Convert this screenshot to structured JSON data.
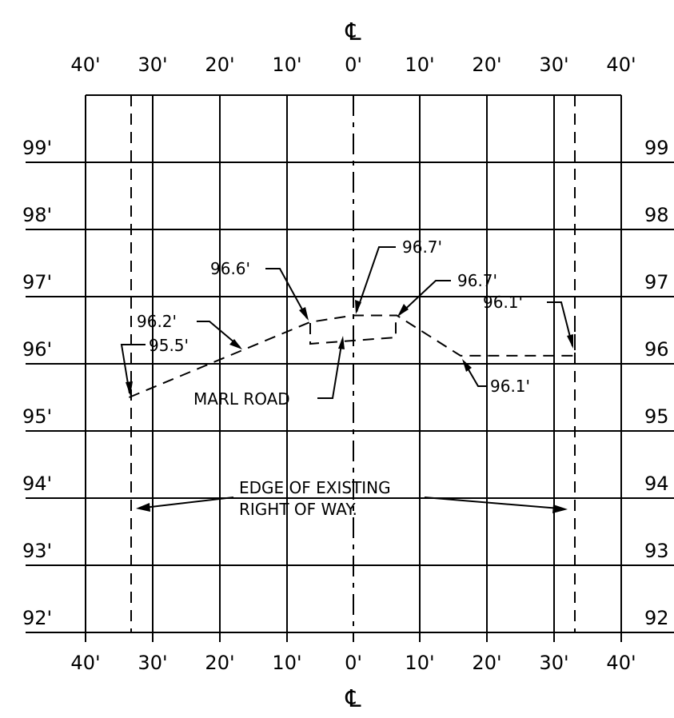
{
  "centerline_symbol": "℄",
  "x_ticks": [
    "40'",
    "30'",
    "20'",
    "10'",
    "0'",
    "10'",
    "20'",
    "30'",
    "40'"
  ],
  "left_elevations": [
    "99'",
    "98'",
    "97'",
    "96'",
    "95'",
    "94'",
    "93'",
    "92'"
  ],
  "right_elevations": [
    "99",
    "98",
    "97",
    "96",
    "95",
    "94",
    "93",
    "92"
  ],
  "callouts": {
    "left_ground": "96.2'",
    "left_row_base": "95.5'",
    "road_left": "96.6'",
    "centerline_top": "96.7'",
    "road_right": "96.7'",
    "right_row": "96.1'",
    "right_ground": "96.1'",
    "marl_road": "MARL ROAD",
    "row_line1": "EDGE OF EXISTING",
    "row_line2": "RIGHT OF WAY."
  },
  "profile_points": [
    {
      "offset": -33.5,
      "elev": 95.5
    },
    {
      "offset": -6.5,
      "elev": 96.62
    },
    {
      "offset": 0,
      "elev": 96.72
    },
    {
      "offset": 6.5,
      "elev": 96.72
    },
    {
      "offset": 16,
      "elev": 96.12
    },
    {
      "offset": 33,
      "elev": 96.12
    }
  ]
}
